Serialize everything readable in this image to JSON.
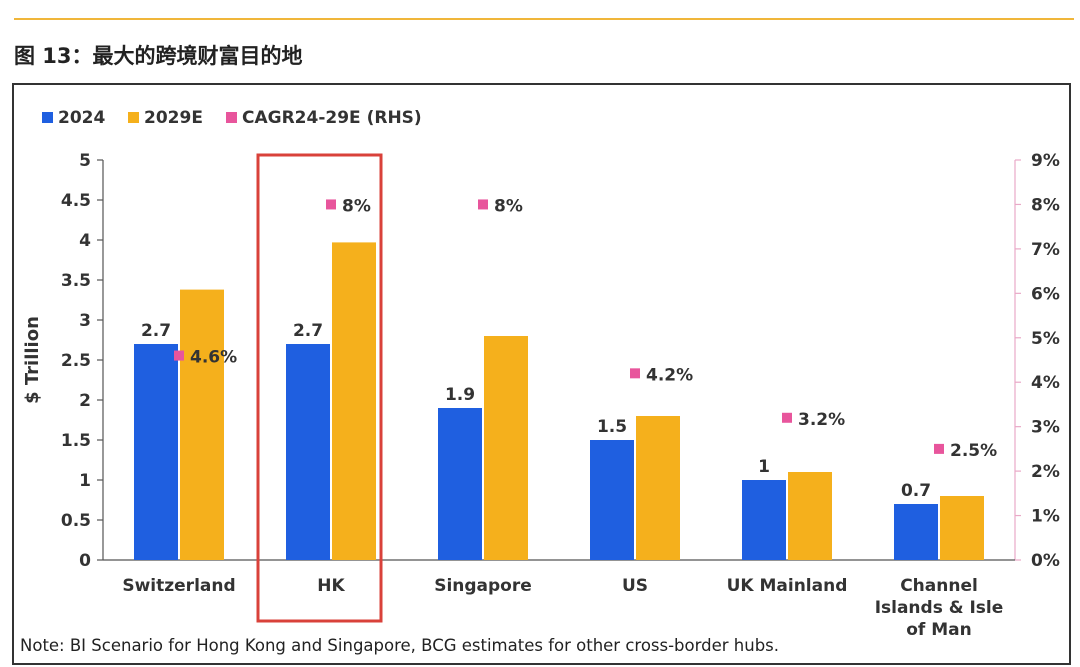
{
  "figure": {
    "title": "图 13：最大的跨境财富目的地",
    "note": "Note: BI Scenario for Hong Kong and Singapore, BCG estimates for other cross-border hubs."
  },
  "colors": {
    "series_2024": "#1f5fe0",
    "series_2029": "#f5b01c",
    "cagr": "#e8559c",
    "highlight": "#d9413a",
    "accent_rule": "#f0b63a"
  },
  "chart_data": {
    "type": "bar",
    "title": "",
    "ylabel": "$ Trillion",
    "ylabel_right": "",
    "ylim": [
      0,
      5
    ],
    "ylim_right": [
      0,
      9
    ],
    "yticks": [
      "0",
      "0.5",
      "1",
      "1.5",
      "2",
      "2.5",
      "3",
      "3.5",
      "4",
      "4.5",
      "5"
    ],
    "yticks_right": [
      "0%",
      "1%",
      "2%",
      "3%",
      "4%",
      "5%",
      "6%",
      "7%",
      "8%",
      "9%"
    ],
    "categories": [
      "Switzerland",
      "HK",
      "Singapore",
      "US",
      "UK Mainland",
      "Channel Islands & Isle of Man"
    ],
    "category_lines": [
      [
        "Switzerland"
      ],
      [
        "HK"
      ],
      [
        "Singapore"
      ],
      [
        "US"
      ],
      [
        "UK Mainland"
      ],
      [
        "Channel",
        "Islands & Isle",
        "of Man"
      ]
    ],
    "highlighted_category": "HK",
    "legend": [
      "2024",
      "2029E",
      "CAGR24-29E (RHS)"
    ],
    "legend_position": "top-left",
    "series": [
      {
        "name": "2024",
        "axis": "left",
        "values": [
          2.7,
          2.7,
          1.9,
          1.5,
          1.0,
          0.7
        ],
        "labels": [
          "2.7",
          "2.7",
          "1.9",
          "1.5",
          "1",
          "0.7"
        ]
      },
      {
        "name": "2029E",
        "axis": "left",
        "values": [
          3.38,
          3.97,
          2.8,
          1.8,
          1.1,
          0.8
        ]
      },
      {
        "name": "CAGR24-29E (RHS)",
        "axis": "right",
        "type": "scatter",
        "values": [
          4.6,
          8,
          8,
          4.2,
          3.2,
          2.5
        ],
        "labels": [
          "4.6%",
          "8%",
          "8%",
          "4.2%",
          "3.2%",
          "2.5%"
        ]
      }
    ]
  }
}
